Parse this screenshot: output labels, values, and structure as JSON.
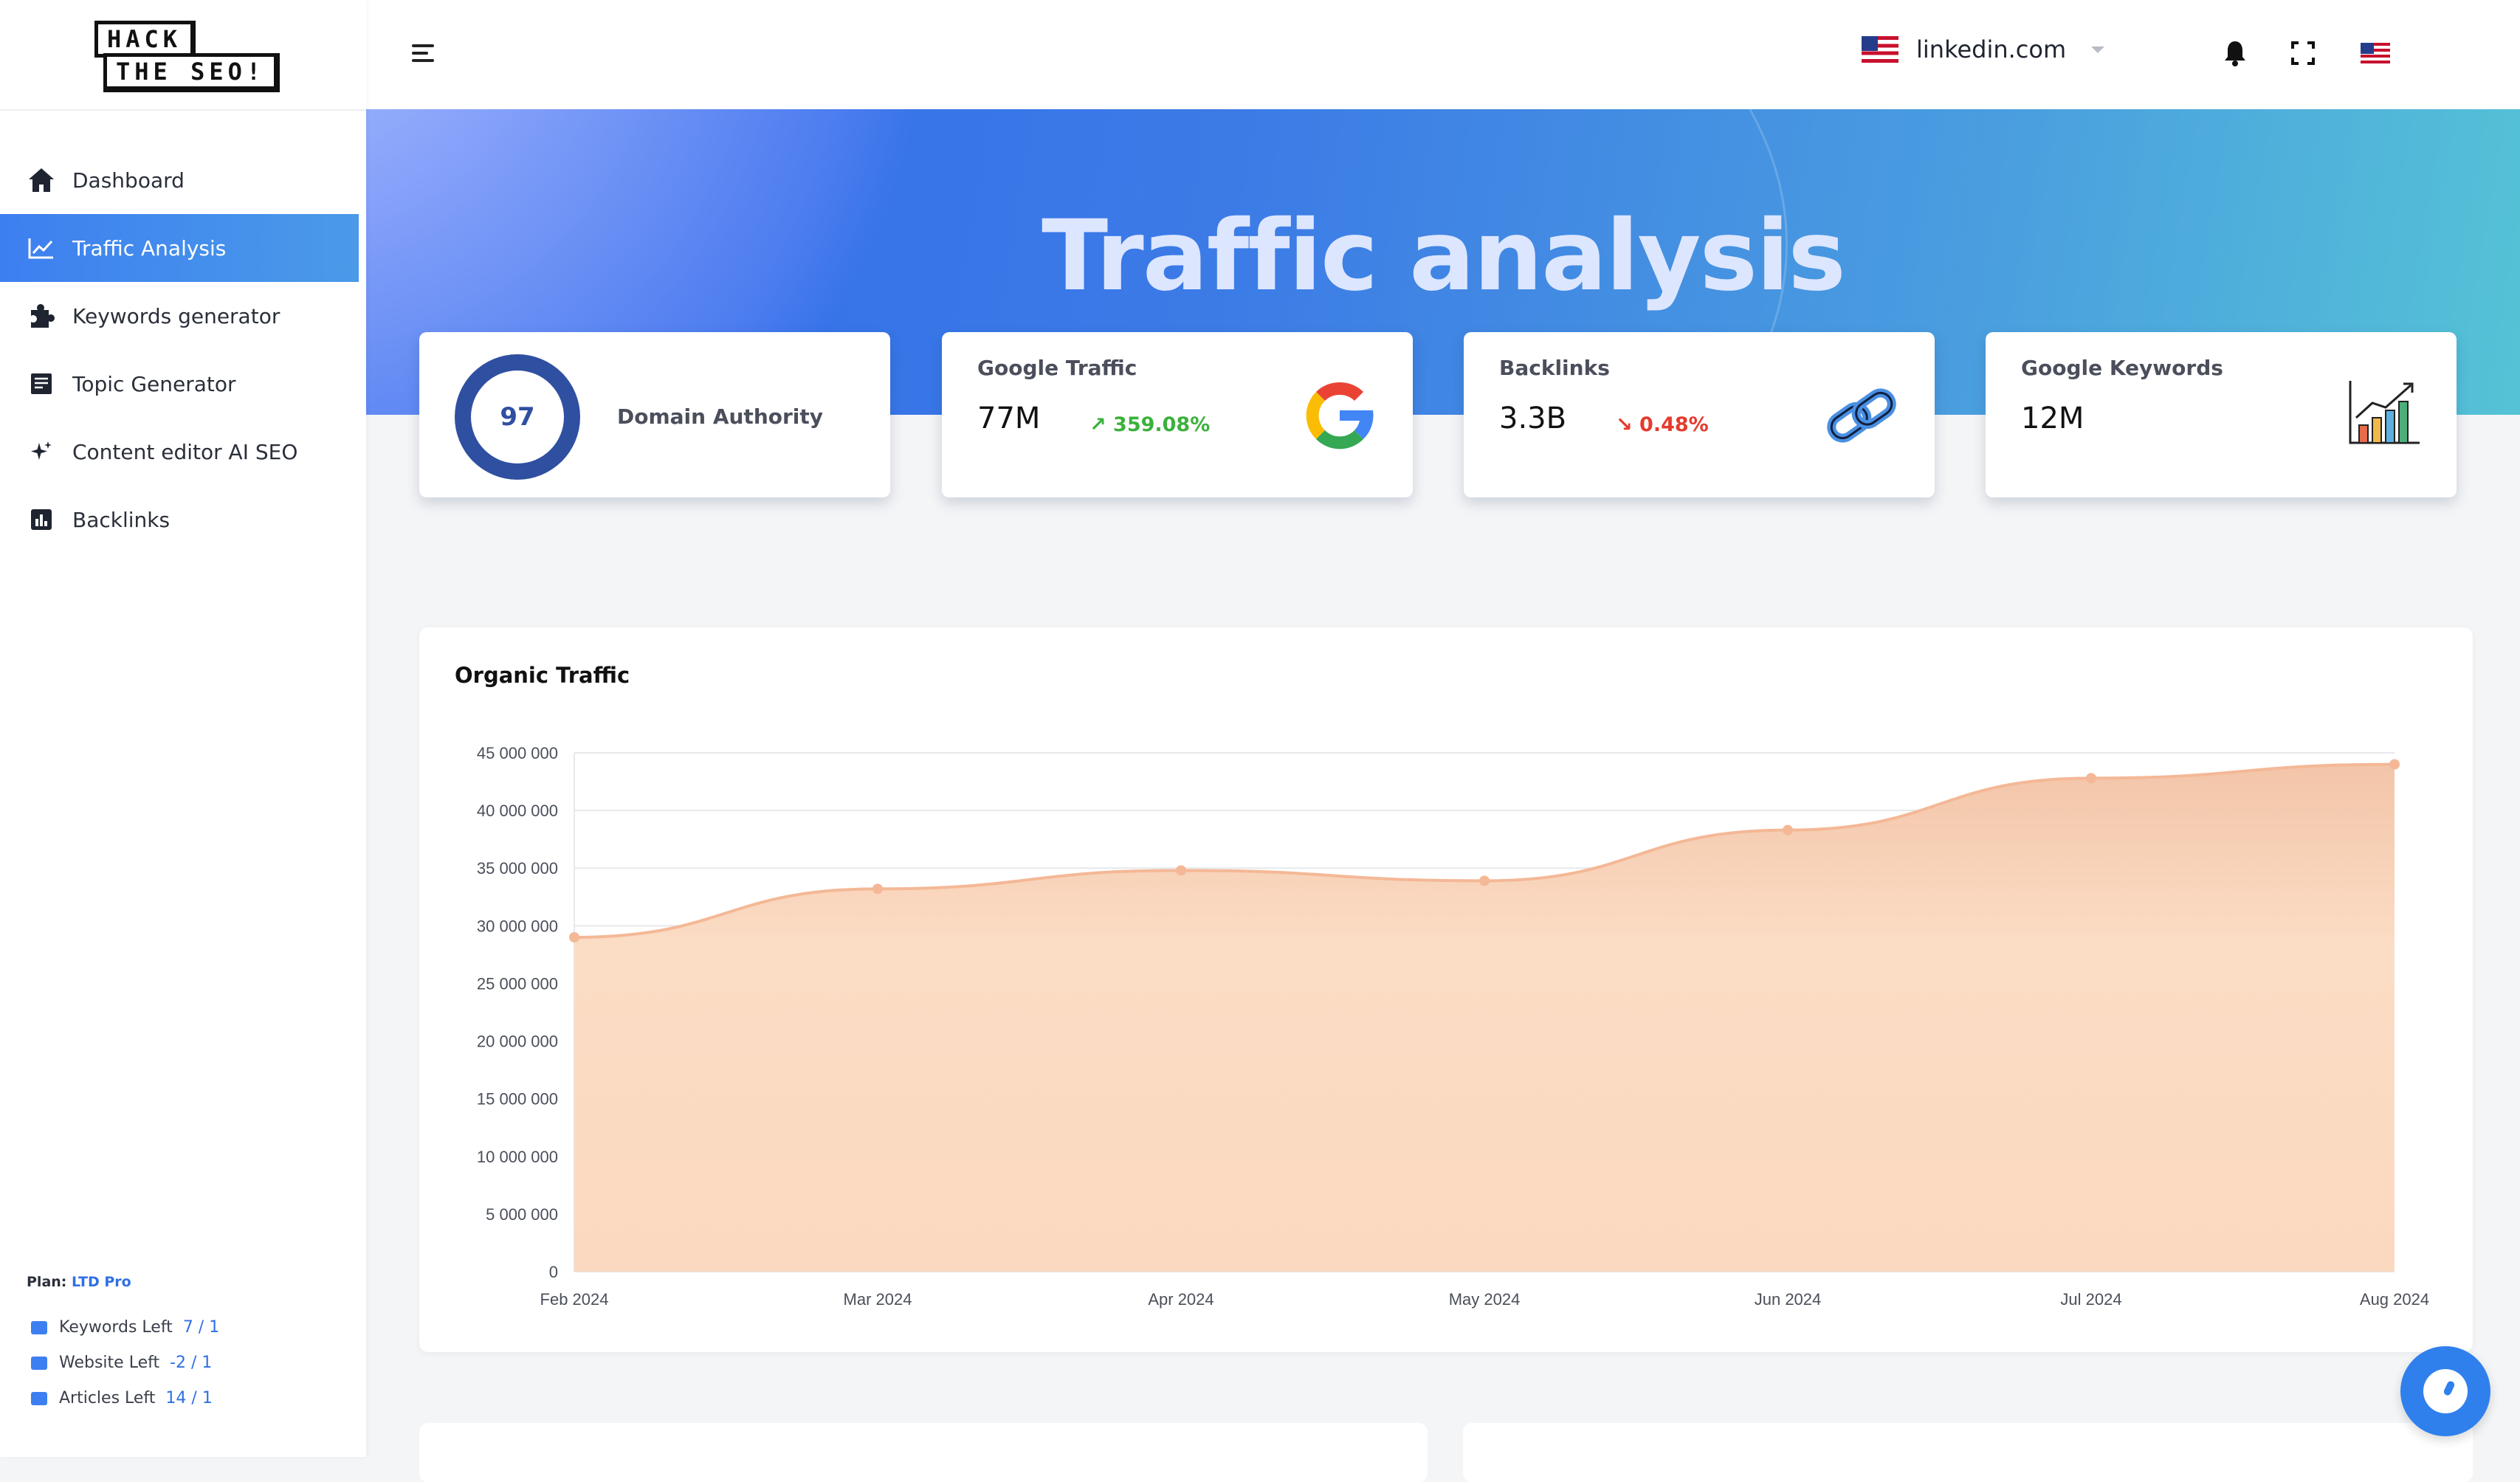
{
  "brand": {
    "logo_line1": "HACK",
    "logo_line2": "THE SEO!"
  },
  "sidebar": {
    "items": [
      {
        "label": "Dashboard",
        "icon": "home-icon",
        "active": false
      },
      {
        "label": "Traffic Analysis",
        "icon": "line-chart-icon",
        "active": true
      },
      {
        "label": "Keywords generator",
        "icon": "puzzle-icon",
        "active": false
      },
      {
        "label": "Topic Generator",
        "icon": "note-icon",
        "active": false
      },
      {
        "label": "Content editor AI SEO",
        "icon": "sparkle-icon",
        "active": false
      },
      {
        "label": "Backlinks",
        "icon": "bar-chart-icon",
        "active": false
      }
    ],
    "plan_label": "Plan:",
    "plan_value": "LTD Pro",
    "quotas": [
      {
        "label": "Keywords Left",
        "value": "7 / 1"
      },
      {
        "label": "Website Left",
        "value": "-2 / 1"
      },
      {
        "label": "Articles Left",
        "value": "14 / 1"
      }
    ]
  },
  "topbar": {
    "domain": "linkedin.com",
    "icons": [
      "menu-icon",
      "bell-icon",
      "fullscreen-icon",
      "us-flag-icon",
      "avatar"
    ]
  },
  "hero": {
    "title": "Traffic analysis"
  },
  "stats": {
    "domain_authority": {
      "value": "97",
      "label": "Domain Authority"
    },
    "google_traffic": {
      "title": "Google Traffic",
      "value": "77M",
      "change": "359.08%",
      "direction": "up",
      "icon": "google-icon"
    },
    "backlinks": {
      "title": "Backlinks",
      "value": "3.3B",
      "change": "0.48%",
      "direction": "down",
      "icon": "link-icon"
    },
    "google_keywords": {
      "title": "Google Keywords",
      "value": "12M",
      "icon": "growth-chart-icon"
    }
  },
  "colors": {
    "accent": "#3d7ff0",
    "up": "#3cb13c",
    "down": "#e43b2d",
    "area_fill": "#fbdcc4",
    "area_line": "#f4b896"
  },
  "chart_data": {
    "type": "area",
    "title": "Organic Traffic",
    "categories": [
      "Feb 2024",
      "Mar 2024",
      "Apr 2024",
      "May 2024",
      "Jun 2024",
      "Jul 2024",
      "Aug 2024"
    ],
    "values": [
      29000000,
      33200000,
      34800000,
      33900000,
      38300000,
      42800000,
      44000000
    ],
    "ylim": [
      0,
      45000000
    ],
    "yticks": [
      "0",
      "5 000 000",
      "10 000 000",
      "15 000 000",
      "20 000 000",
      "25 000 000",
      "30 000 000",
      "35 000 000",
      "40 000 000",
      "45 000 000"
    ],
    "grid": true
  }
}
